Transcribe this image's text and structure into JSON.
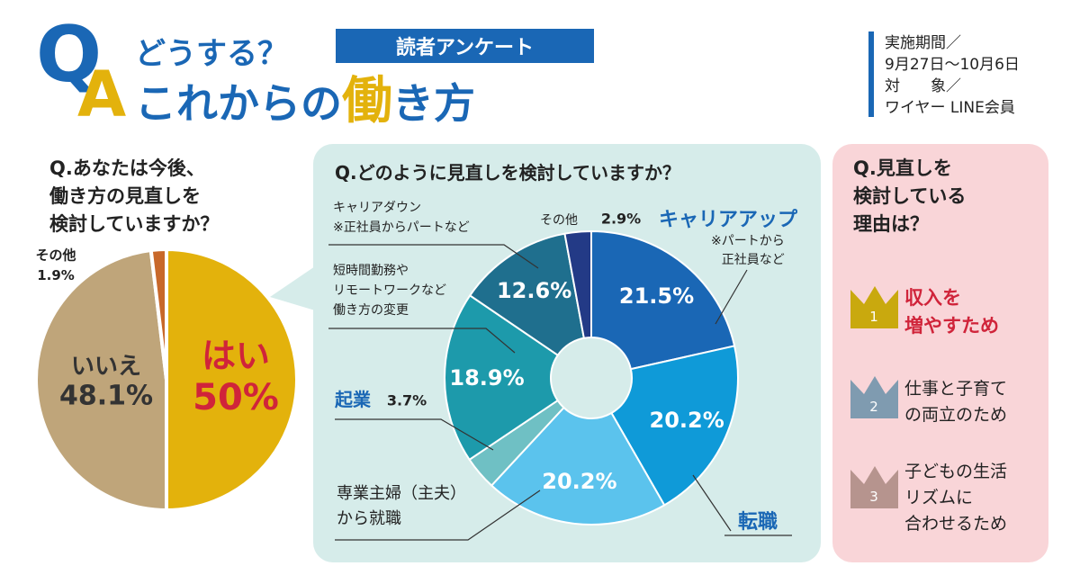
{
  "header": {
    "q": "Q",
    "a": "A",
    "line1": "どうする？",
    "badge": "読者アンケート",
    "line2": [
      "これからの",
      "働",
      "き方"
    ],
    "info": [
      "実施期間／",
      "9月27日〜10月6日",
      "対　　象／",
      "ワイヤー LINE会員"
    ]
  },
  "chart_data": [
    {
      "type": "pie",
      "title": "Q.あなたは今後、\n働き方の見直しを\n検討していますか？",
      "categories": [
        "はい",
        "いいえ",
        "その他"
      ],
      "values": [
        50,
        48.1,
        1.9
      ],
      "value_labels": [
        "50%",
        "48.1%",
        "1.9%"
      ],
      "colors": [
        "#e3b20c",
        "#bfa57a",
        "#c8682a"
      ]
    },
    {
      "type": "donut",
      "title": "Q.どのように見直しを検討していますか？",
      "categories": [
        "キャリアアップ",
        "転職",
        "専業主婦（主夫）\nから就職",
        "起業",
        "短時間勤務や\nリモートワークなど\n働き方の変更",
        "キャリアダウン\n※正社員からパートなど",
        "その他"
      ],
      "values": [
        21.5,
        20.2,
        20.2,
        3.7,
        18.9,
        12.6,
        2.9
      ],
      "value_labels": [
        "21.5%",
        "20.2%",
        "20.2%",
        "3.7%",
        "18.9%",
        "12.6%",
        "2.9%"
      ],
      "colors": [
        "#1a67b5",
        "#0f9ad8",
        "#5bc3ed",
        "#6fc0c4",
        "#1d9aab",
        "#1f6f8e",
        "#233a86"
      ],
      "annotations": [
        "※パートから\n正社員など"
      ]
    }
  ],
  "ranking": {
    "title": "Q.見直しを\n検討している\n理由は？",
    "items": [
      {
        "rank": "1",
        "text": "収入を\n増やすため"
      },
      {
        "rank": "2",
        "text": "仕事と子育て\nの両立のため"
      },
      {
        "rank": "3",
        "text": "子どもの生活\nリズムに\n合わせるため"
      }
    ]
  }
}
